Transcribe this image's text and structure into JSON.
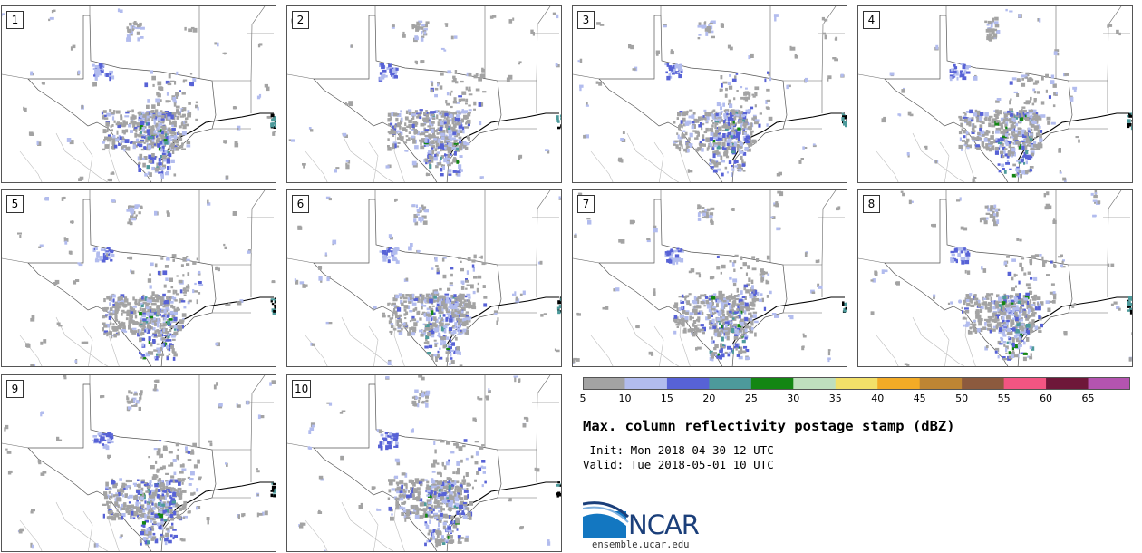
{
  "title": "Max. column reflectivity postage stamp (dBZ)",
  "init": " Init: Mon 2018-04-30 12 UTC",
  "valid": "Valid: Tue 2018-05-01 10 UTC",
  "website": "ensemble.ucar.edu",
  "logo_text": "NCAR",
  "members": [
    {
      "label": "1",
      "seed": 11
    },
    {
      "label": "2",
      "seed": 23
    },
    {
      "label": "3",
      "seed": 37
    },
    {
      "label": "4",
      "seed": 41
    },
    {
      "label": "5",
      "seed": 53
    },
    {
      "label": "6",
      "seed": 67
    },
    {
      "label": "7",
      "seed": 71
    },
    {
      "label": "8",
      "seed": 89
    },
    {
      "label": "9",
      "seed": 97
    },
    {
      "label": "10",
      "seed": 103
    }
  ],
  "colorbar": {
    "ticks": [
      "5",
      "10",
      "15",
      "20",
      "25",
      "30",
      "35",
      "40",
      "45",
      "50",
      "55",
      "60",
      "65"
    ],
    "colors": [
      "#a3a3a3",
      "#b2bcee",
      "#5762d6",
      "#4d9a9b",
      "#138613",
      "#bfdfbe",
      "#f2e069",
      "#f2ab26",
      "#be8533",
      "#8c5a3e",
      "#f25582",
      "#6e1739",
      "#b454b0"
    ]
  },
  "echo_colors": {
    "light": "#a3a3a3",
    "lighter_blue": "#b2bcee",
    "blue": "#5762d6",
    "teal": "#4d9a9b",
    "green": "#138613"
  }
}
